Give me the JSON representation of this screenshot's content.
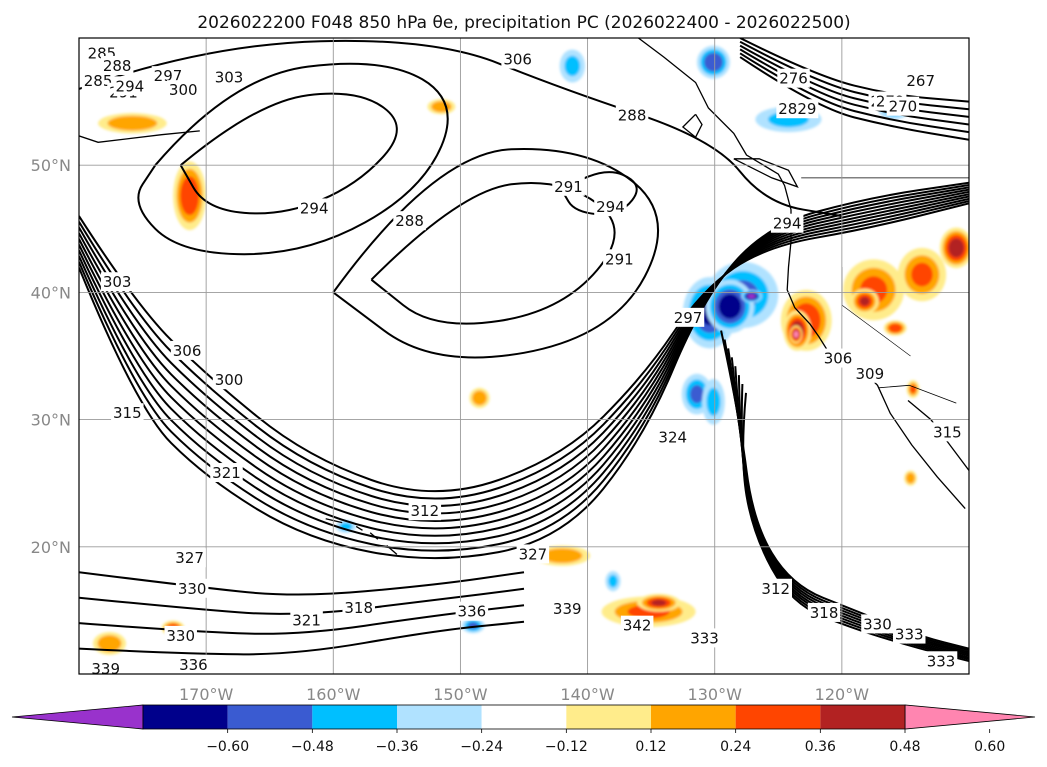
{
  "figure": {
    "title": "2026022200 F048 850 hPa θe, precipitation PC (2026022400 - 2026022500)"
  },
  "map": {
    "projection": "equirectangular",
    "lon_range": [
      -180,
      -110
    ],
    "lat_range": [
      10,
      60
    ],
    "grid": true,
    "lat_ticks": [
      {
        "lat": 50,
        "label": "50°N"
      },
      {
        "lat": 40,
        "label": "40°N"
      },
      {
        "lat": 30,
        "label": "30°N"
      },
      {
        "lat": 20,
        "label": "20°N"
      }
    ],
    "lon_ticks": [
      {
        "lon": -170,
        "label": "170°W"
      },
      {
        "lon": -160,
        "label": "160°W"
      },
      {
        "lon": -150,
        "label": "150°W"
      },
      {
        "lon": -140,
        "label": "140°W"
      },
      {
        "lon": -130,
        "label": "130°W"
      },
      {
        "lon": -120,
        "label": "120°W"
      }
    ],
    "contour_labels": [
      {
        "text": "285",
        "lon": -178.2,
        "lat": 58.8
      },
      {
        "text": "288",
        "lon": -177,
        "lat": 57.8
      },
      {
        "text": "285",
        "lon": -178.5,
        "lat": 56.6
      },
      {
        "text": "291",
        "lon": -176.5,
        "lat": 55.7
      },
      {
        "text": "294",
        "lon": -176,
        "lat": 56.2
      },
      {
        "text": "297",
        "lon": -173,
        "lat": 57
      },
      {
        "text": "300",
        "lon": -171.8,
        "lat": 55.9
      },
      {
        "text": "303",
        "lon": -168.2,
        "lat": 56.9
      },
      {
        "text": "306",
        "lon": -145.5,
        "lat": 58.3
      },
      {
        "text": "276",
        "lon": -123.8,
        "lat": 56.8
      },
      {
        "text": "267",
        "lon": -113.8,
        "lat": 56.6
      },
      {
        "text": "2829",
        "lon": -123.5,
        "lat": 54.4
      },
      {
        "text": "27",
        "lon": -117,
        "lat": 55
      },
      {
        "text": "279",
        "lon": -116.2,
        "lat": 55
      },
      {
        "text": "270",
        "lon": -115.2,
        "lat": 54.6
      },
      {
        "text": "288",
        "lon": -136.5,
        "lat": 53.9
      },
      {
        "text": "291",
        "lon": -141.5,
        "lat": 48.3
      },
      {
        "text": "294",
        "lon": -161.5,
        "lat": 46.6
      },
      {
        "text": "294",
        "lon": -138.2,
        "lat": 46.7
      },
      {
        "text": "294",
        "lon": -124.3,
        "lat": 45.4
      },
      {
        "text": "288",
        "lon": -154,
        "lat": 45.6
      },
      {
        "text": "291",
        "lon": -137.5,
        "lat": 42.6
      },
      {
        "text": "297",
        "lon": -132.1,
        "lat": 38
      },
      {
        "text": "303",
        "lon": -177,
        "lat": 40.8
      },
      {
        "text": "306",
        "lon": -171.5,
        "lat": 35.4
      },
      {
        "text": "300",
        "lon": -168.2,
        "lat": 33.1
      },
      {
        "text": "306",
        "lon": -120.3,
        "lat": 34.8
      },
      {
        "text": "309",
        "lon": -117.8,
        "lat": 33.6
      },
      {
        "text": "315",
        "lon": -176.2,
        "lat": 30.5
      },
      {
        "text": "315",
        "lon": -111.7,
        "lat": 29
      },
      {
        "text": "324",
        "lon": -133.3,
        "lat": 28.6
      },
      {
        "text": "321",
        "lon": -168.4,
        "lat": 25.8
      },
      {
        "text": "312",
        "lon": -152.8,
        "lat": 22.8
      },
      {
        "text": "327",
        "lon": -144.3,
        "lat": 19.4
      },
      {
        "text": "327",
        "lon": -171.3,
        "lat": 19.1
      },
      {
        "text": "330",
        "lon": -171.1,
        "lat": 16.7
      },
      {
        "text": "312",
        "lon": -125.2,
        "lat": 16.7
      },
      {
        "text": "318",
        "lon": -158,
        "lat": 15.2
      },
      {
        "text": "321",
        "lon": -162.1,
        "lat": 14.2
      },
      {
        "text": "336",
        "lon": -149.1,
        "lat": 14.9
      },
      {
        "text": "339",
        "lon": -141.6,
        "lat": 15.1
      },
      {
        "text": "318",
        "lon": -121.4,
        "lat": 14.8
      },
      {
        "text": "342",
        "lon": -136.1,
        "lat": 13.8
      },
      {
        "text": "330",
        "lon": -117.2,
        "lat": 13.9
      },
      {
        "text": "333",
        "lon": -130.8,
        "lat": 12.8
      },
      {
        "text": "333",
        "lon": -114.7,
        "lat": 13.1
      },
      {
        "text": "330",
        "lon": -172,
        "lat": 13
      },
      {
        "text": "336",
        "lon": -171,
        "lat": 10.7
      },
      {
        "text": "339",
        "lon": -177.9,
        "lat": 10.4
      },
      {
        "text": "333",
        "lon": -112.2,
        "lat": 11
      }
    ]
  },
  "colorbar": {
    "ticks": [
      "−0.60",
      "−0.48",
      "−0.36",
      "−0.24",
      "−0.12",
      "0.12",
      "0.24",
      "0.36",
      "0.48",
      "0.60"
    ],
    "bins": [
      {
        "range": [
          -0.6,
          -0.48
        ],
        "color": "#00008b"
      },
      {
        "range": [
          -0.48,
          -0.36
        ],
        "color": "#3a5bd1"
      },
      {
        "range": [
          -0.36,
          -0.24
        ],
        "color": "#00bfff"
      },
      {
        "range": [
          -0.24,
          -0.12
        ],
        "color": "#b0e2ff"
      },
      {
        "range": [
          -0.12,
          0.12
        ],
        "color": "#ffffff"
      },
      {
        "range": [
          0.12,
          0.24
        ],
        "color": "#ffec8b"
      },
      {
        "range": [
          0.24,
          0.36
        ],
        "color": "#ffa500"
      },
      {
        "range": [
          0.36,
          0.48
        ],
        "color": "#ff4500"
      },
      {
        "range": [
          0.48,
          0.6
        ],
        "color": "#b22222"
      }
    ],
    "under_color": "#9932cc",
    "over_color": "#ff85b0"
  },
  "precip_blobs": [
    {
      "lon": -127.8,
      "lat": 39.8,
      "rx": 2.8,
      "ry": 2.6,
      "level": -0.4
    },
    {
      "lon": -130.4,
      "lat": 38.4,
      "rx": 2.1,
      "ry": 2.8,
      "level": -0.5
    },
    {
      "lon": -128.8,
      "lat": 38.9,
      "rx": 1.9,
      "ry": 2.1,
      "level": -0.55
    },
    {
      "lon": -127.1,
      "lat": 39.7,
      "rx": 0.8,
      "ry": 0.5,
      "level": -0.7
    },
    {
      "lon": -131.4,
      "lat": 32.0,
      "rx": 1.2,
      "ry": 1.6,
      "level": -0.4
    },
    {
      "lon": -130.1,
      "lat": 31.4,
      "rx": 0.9,
      "ry": 1.8,
      "level": -0.3
    },
    {
      "lon": -122.8,
      "lat": 37.8,
      "rx": 2.0,
      "ry": 2.4,
      "level": 0.45
    },
    {
      "lon": -123.5,
      "lat": 37.0,
      "rx": 1.1,
      "ry": 1.6,
      "level": 0.55
    },
    {
      "lon": -123.6,
      "lat": 36.7,
      "rx": 0.5,
      "ry": 0.7,
      "level": 0.7
    },
    {
      "lon": -117.5,
      "lat": 40.2,
      "rx": 2.4,
      "ry": 2.4,
      "level": 0.4
    },
    {
      "lon": -113.7,
      "lat": 41.4,
      "rx": 1.9,
      "ry": 2.1,
      "level": 0.4
    },
    {
      "lon": -118.2,
      "lat": 39.3,
      "rx": 1.1,
      "ry": 1.0,
      "level": 0.5
    },
    {
      "lon": -111.0,
      "lat": 43.5,
      "rx": 1.3,
      "ry": 1.6,
      "level": 0.55
    },
    {
      "lon": -115.8,
      "lat": 37.2,
      "rx": 0.9,
      "ry": 0.6,
      "level": 0.45
    },
    {
      "lon": -135.2,
      "lat": 14.9,
      "rx": 3.7,
      "ry": 1.2,
      "level": 0.4
    },
    {
      "lon": -134.4,
      "lat": 15.6,
      "rx": 1.7,
      "ry": 0.7,
      "level": 0.5
    },
    {
      "lon": -142.0,
      "lat": 19.3,
      "rx": 2.2,
      "ry": 0.8,
      "level": 0.35
    },
    {
      "lon": -171.3,
      "lat": 47.6,
      "rx": 1.3,
      "ry": 2.7,
      "level": 0.45
    },
    {
      "lon": -175.8,
      "lat": 53.3,
      "rx": 2.7,
      "ry": 0.8,
      "level": 0.35
    },
    {
      "lon": -172.6,
      "lat": 13.6,
      "rx": 0.9,
      "ry": 0.6,
      "level": 0.45
    },
    {
      "lon": -177.6,
      "lat": 12.4,
      "rx": 1.3,
      "ry": 0.9,
      "level": 0.35
    },
    {
      "lon": -130.1,
      "lat": 58.1,
      "rx": 1.3,
      "ry": 1.3,
      "level": -0.45
    },
    {
      "lon": -124.2,
      "lat": 53.6,
      "rx": 2.6,
      "ry": 1.0,
      "level": -0.3
    },
    {
      "lon": -115.9,
      "lat": 54.3,
      "rx": 1.2,
      "ry": 0.7,
      "level": -0.3
    },
    {
      "lon": -149.0,
      "lat": 13.8,
      "rx": 0.9,
      "ry": 0.6,
      "level": -0.4
    },
    {
      "lon": -159.0,
      "lat": 21.6,
      "rx": 0.8,
      "ry": 0.5,
      "level": -0.3
    },
    {
      "lon": -138.0,
      "lat": 17.3,
      "rx": 0.6,
      "ry": 0.8,
      "level": -0.3
    },
    {
      "lon": -148.5,
      "lat": 31.7,
      "rx": 0.8,
      "ry": 0.8,
      "level": 0.35
    },
    {
      "lon": -151.5,
      "lat": 54.6,
      "rx": 1.1,
      "ry": 0.6,
      "level": 0.35
    },
    {
      "lon": -114.4,
      "lat": 32.4,
      "rx": 0.5,
      "ry": 0.7,
      "level": 0.4
    },
    {
      "lon": -114.6,
      "lat": 25.4,
      "rx": 0.5,
      "ry": 0.6,
      "level": 0.35
    },
    {
      "lon": -141.2,
      "lat": 57.8,
      "rx": 1.0,
      "ry": 1.3,
      "level": -0.3
    }
  ]
}
